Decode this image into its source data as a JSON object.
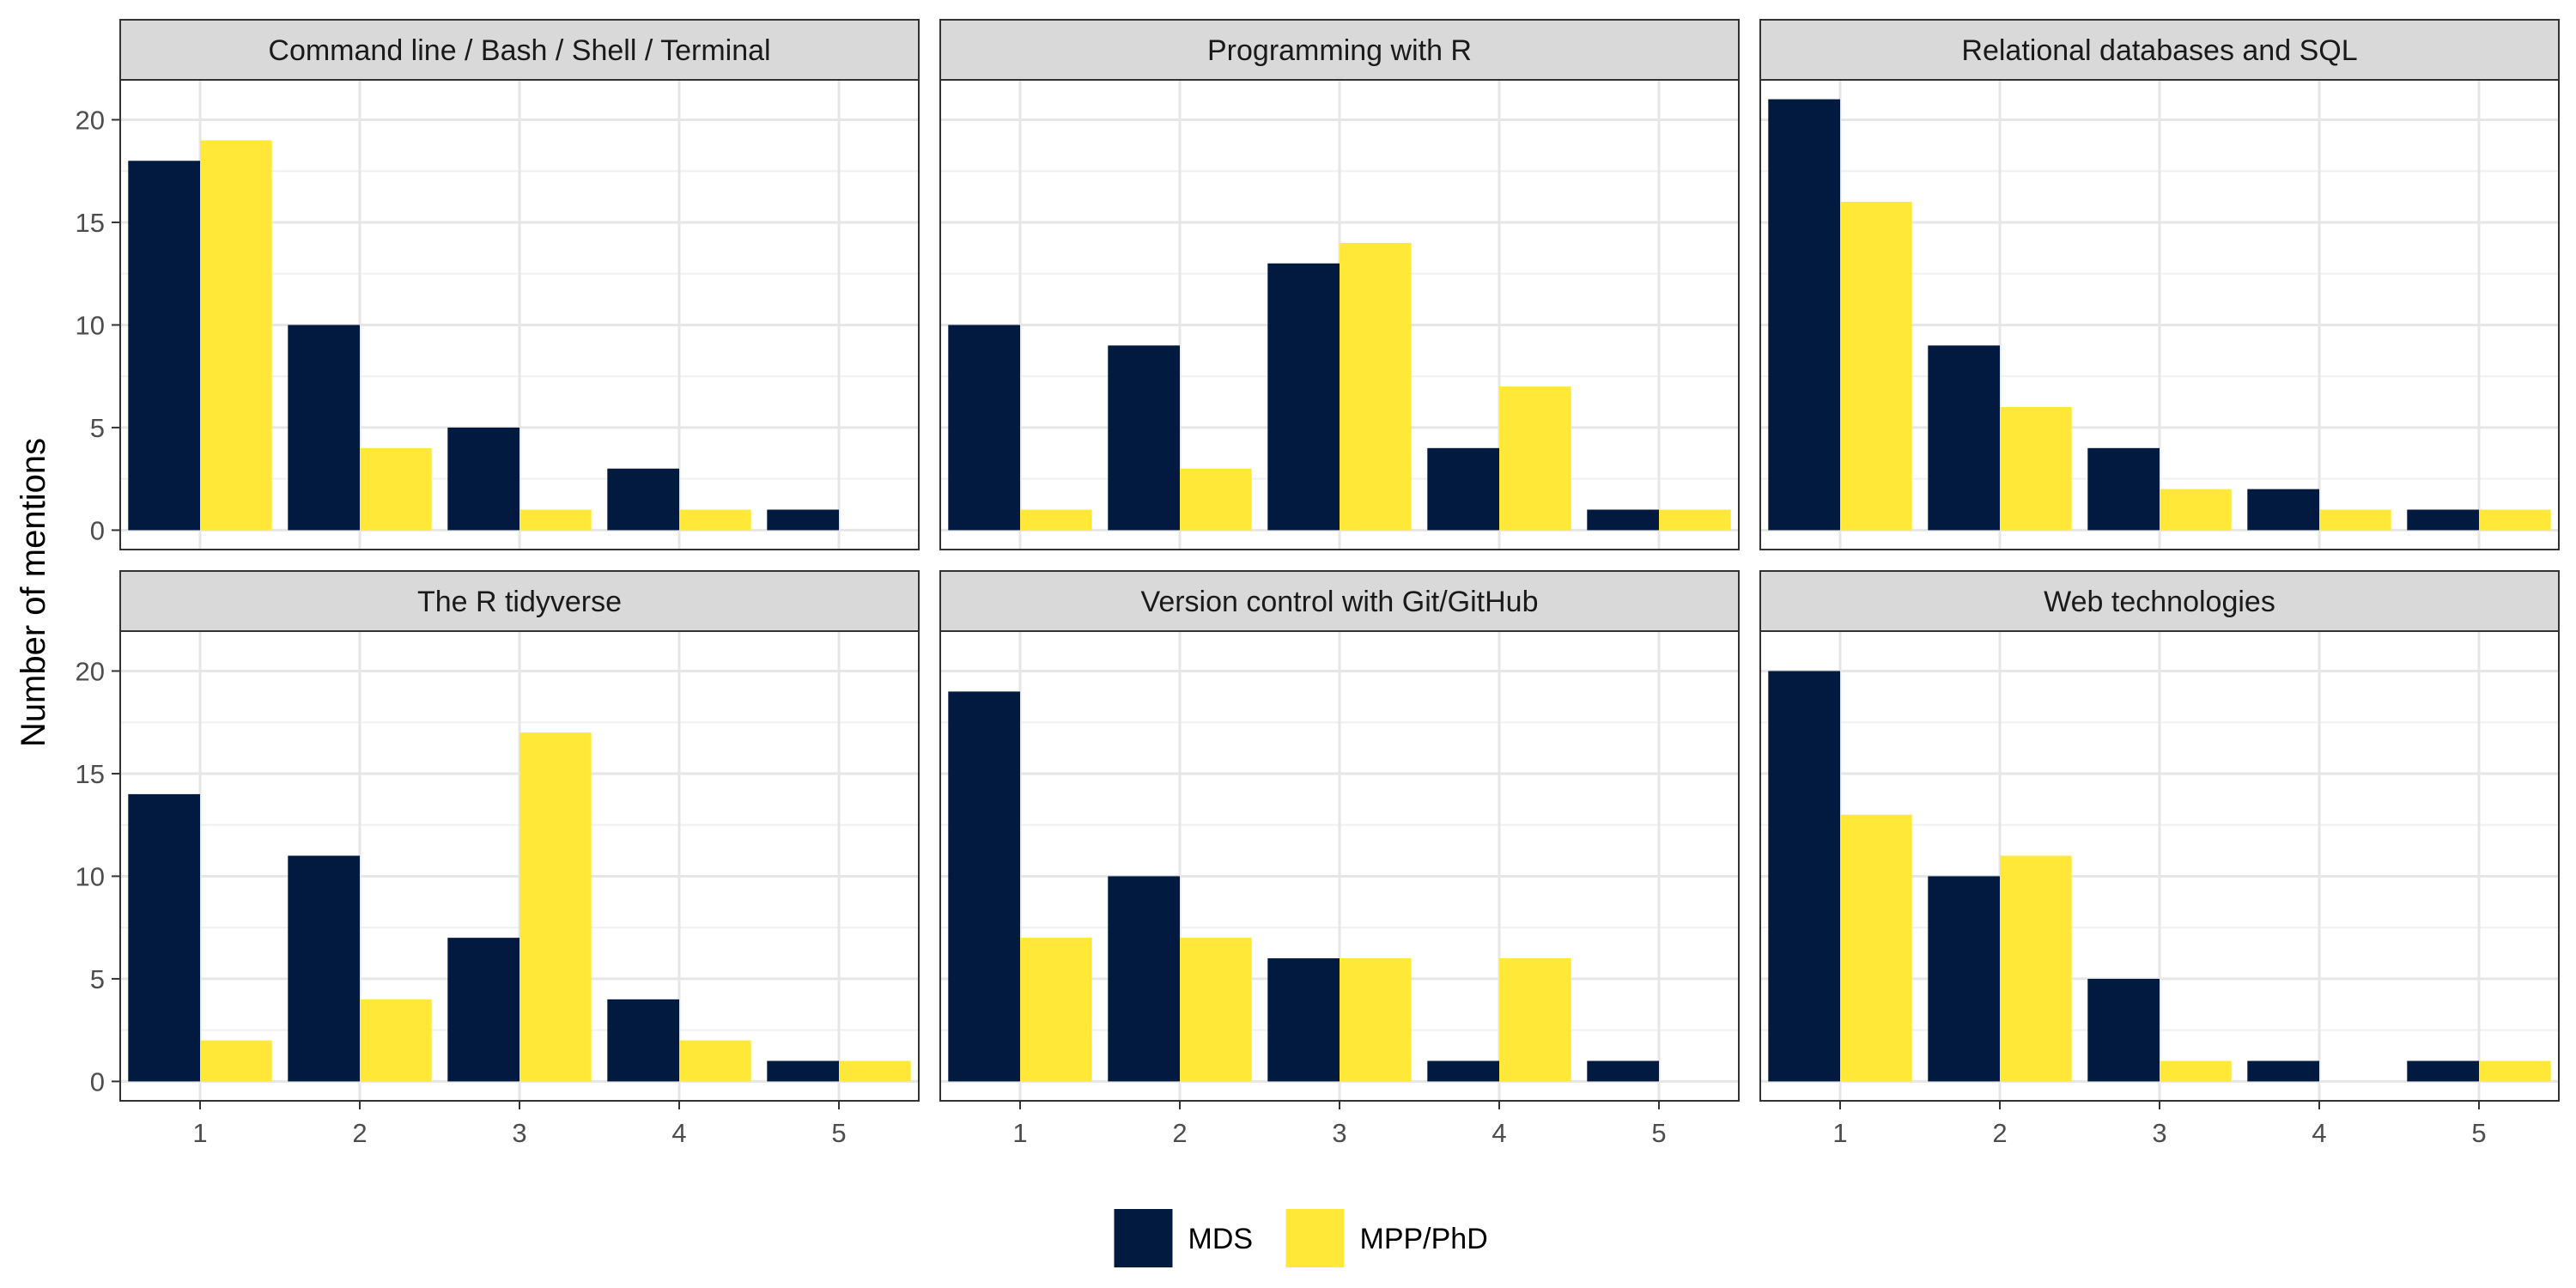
{
  "chart_data": {
    "type": "bar",
    "layout": "facet-grid",
    "ylabel": "Number of mentions",
    "xlabel": "",
    "categories": [
      "1",
      "2",
      "3",
      "4",
      "5"
    ],
    "ylim": [
      0,
      21
    ],
    "yticks": [
      0,
      5,
      10,
      15,
      20
    ],
    "grid": true,
    "legend": {
      "position": "bottom",
      "entries": [
        "MDS",
        "MPP/PhD"
      ]
    },
    "colors": {
      "MDS": "#031A40",
      "MPP/PhD": "#FFE837"
    },
    "panels": [
      {
        "title": "Command line / Bash / Shell / Terminal",
        "series": [
          {
            "name": "MDS",
            "values": [
              18,
              10,
              5,
              3,
              1
            ]
          },
          {
            "name": "MPP/PhD",
            "values": [
              19,
              4,
              1,
              1,
              0
            ]
          }
        ]
      },
      {
        "title": "Programming with R",
        "series": [
          {
            "name": "MDS",
            "values": [
              10,
              9,
              13,
              4,
              1
            ]
          },
          {
            "name": "MPP/PhD",
            "values": [
              1,
              3,
              14,
              7,
              1
            ]
          }
        ]
      },
      {
        "title": "Relational databases and SQL",
        "series": [
          {
            "name": "MDS",
            "values": [
              21,
              9,
              4,
              2,
              1
            ]
          },
          {
            "name": "MPP/PhD",
            "values": [
              16,
              6,
              2,
              1,
              1
            ]
          }
        ]
      },
      {
        "title": "The R tidyverse",
        "series": [
          {
            "name": "MDS",
            "values": [
              14,
              11,
              7,
              4,
              1
            ]
          },
          {
            "name": "MPP/PhD",
            "values": [
              2,
              4,
              17,
              2,
              1
            ]
          }
        ]
      },
      {
        "title": "Version control with Git/GitHub",
        "series": [
          {
            "name": "MDS",
            "values": [
              19,
              10,
              6,
              1,
              1
            ]
          },
          {
            "name": "MPP/PhD",
            "values": [
              7,
              7,
              6,
              6,
              0
            ]
          }
        ]
      },
      {
        "title": "Web technologies",
        "series": [
          {
            "name": "MDS",
            "values": [
              20,
              10,
              5,
              1,
              1
            ]
          },
          {
            "name": "MPP/PhD",
            "values": [
              13,
              11,
              1,
              0,
              1
            ]
          }
        ]
      }
    ]
  }
}
